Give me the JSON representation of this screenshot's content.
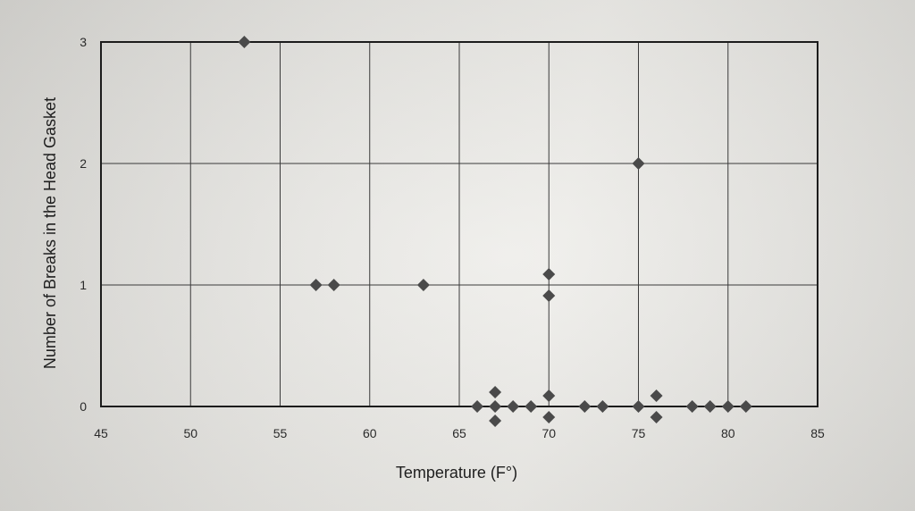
{
  "chart_data": {
    "type": "scatter",
    "title": "",
    "xlabel": "Temperature (F°)",
    "ylabel": "Number of Breaks in the Head Gasket",
    "xlim": [
      45,
      85
    ],
    "ylim": [
      0,
      3
    ],
    "xticks": [
      45,
      50,
      55,
      60,
      65,
      70,
      75,
      80,
      85
    ],
    "yticks": [
      0,
      1,
      2,
      3
    ],
    "grid": true,
    "marker": "diamond",
    "marker_color": "#4a4a4a",
    "points": [
      {
        "x": 53,
        "y": 3
      },
      {
        "x": 75,
        "y": 2
      },
      {
        "x": 57,
        "y": 1
      },
      {
        "x": 58,
        "y": 1
      },
      {
        "x": 63,
        "y": 1
      },
      {
        "x": 70,
        "y": 1
      },
      {
        "x": 70,
        "y": 1
      },
      {
        "x": 66,
        "y": 0
      },
      {
        "x": 67,
        "y": 0
      },
      {
        "x": 67,
        "y": 0
      },
      {
        "x": 67,
        "y": 0
      },
      {
        "x": 68,
        "y": 0
      },
      {
        "x": 69,
        "y": 0
      },
      {
        "x": 70,
        "y": 0
      },
      {
        "x": 70,
        "y": 0
      },
      {
        "x": 72,
        "y": 0
      },
      {
        "x": 73,
        "y": 0
      },
      {
        "x": 75,
        "y": 0
      },
      {
        "x": 76,
        "y": 0
      },
      {
        "x": 76,
        "y": 0
      },
      {
        "x": 78,
        "y": 0
      },
      {
        "x": 79,
        "y": 0
      },
      {
        "x": 80,
        "y": 0
      },
      {
        "x": 81,
        "y": 0
      }
    ]
  }
}
